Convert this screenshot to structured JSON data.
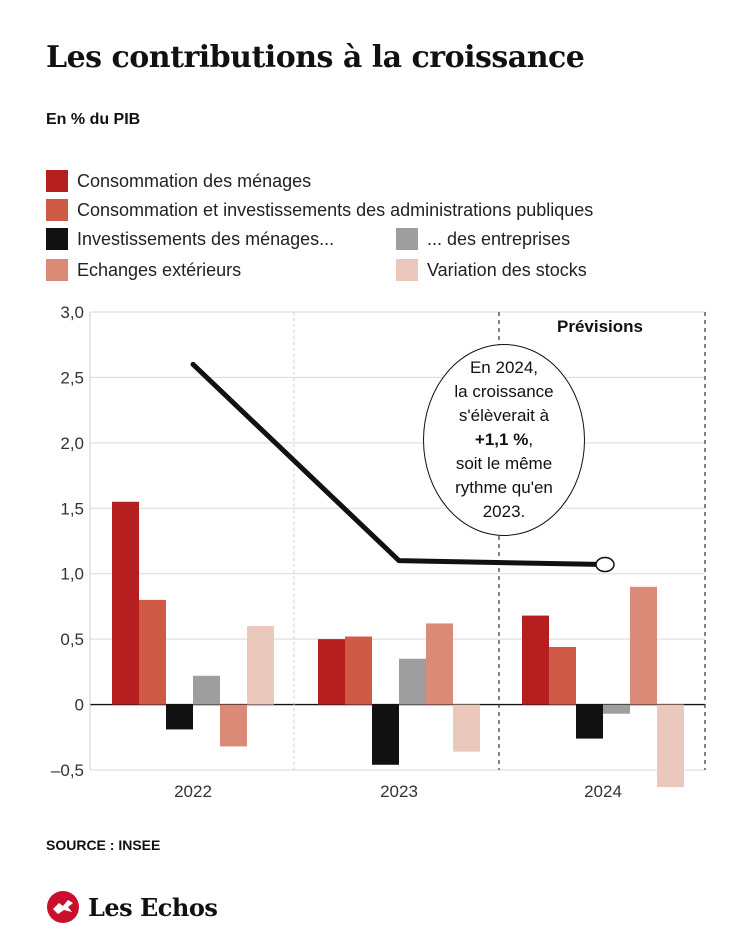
{
  "title": "Les contributions à la croissance",
  "subtitle": "En % du PIB",
  "legend": [
    {
      "label": "Consommation des ménages",
      "color": "#b51f1f"
    },
    {
      "label": "Consommation et investissements des administrations publiques",
      "color": "#cf5a45"
    },
    {
      "label": "Investissements des ménages...",
      "color": "#111111"
    },
    {
      "label": "... des entreprises",
      "color": "#9e9e9e"
    },
    {
      "label": "Echanges extérieurs",
      "color": "#db8a77"
    },
    {
      "label": "Variation des stocks",
      "color": "#ebc8bc"
    }
  ],
  "chart_data": {
    "type": "bar",
    "categories": [
      "2022",
      "2023",
      "2024"
    ],
    "series": [
      {
        "name": "Consommation des ménages",
        "color": "#b51f1f",
        "values": [
          1.55,
          0.5,
          0.68
        ]
      },
      {
        "name": "Consommation et investissements des administrations publiques",
        "color": "#cf5a45",
        "values": [
          0.8,
          0.52,
          0.44
        ]
      },
      {
        "name": "Investissements des ménages...",
        "color": "#111111",
        "values": [
          -0.19,
          -0.46,
          -0.26
        ]
      },
      {
        "name": "... des entreprises",
        "color": "#9e9e9e",
        "values": [
          0.22,
          0.35,
          -0.07
        ]
      },
      {
        "name": "Echanges extérieurs",
        "color": "#db8a77",
        "values": [
          -0.32,
          0.62,
          0.9
        ]
      },
      {
        "name": "Variation des stocks",
        "color": "#ebc8bc",
        "values": [
          0.6,
          -0.36,
          -0.63
        ]
      }
    ],
    "line": {
      "values": [
        2.6,
        1.1,
        1.07
      ],
      "color": "#111111"
    },
    "yticks": [
      "3,0",
      "2,5",
      "2,0",
      "1,5",
      "1,0",
      "0,5",
      "0",
      "–0,5"
    ],
    "ytick_values": [
      3.0,
      2.5,
      2.0,
      1.5,
      1.0,
      0.5,
      0.0,
      -0.5
    ],
    "ylim": [
      -0.5,
      3.0
    ],
    "forecast_label": "Prévisions",
    "grid": true
  },
  "callout": {
    "line1": "En 2024,",
    "line2": "la croissance",
    "line3": "s'élèverait à",
    "line4": "+1,1 %",
    "line4_suffix": ",",
    "line5": "soit le même",
    "line6": "rythme qu'en",
    "line7": "2023."
  },
  "source": "SOURCE : INSEE",
  "brand": "Les Echos",
  "brand_color": "#c8102e"
}
